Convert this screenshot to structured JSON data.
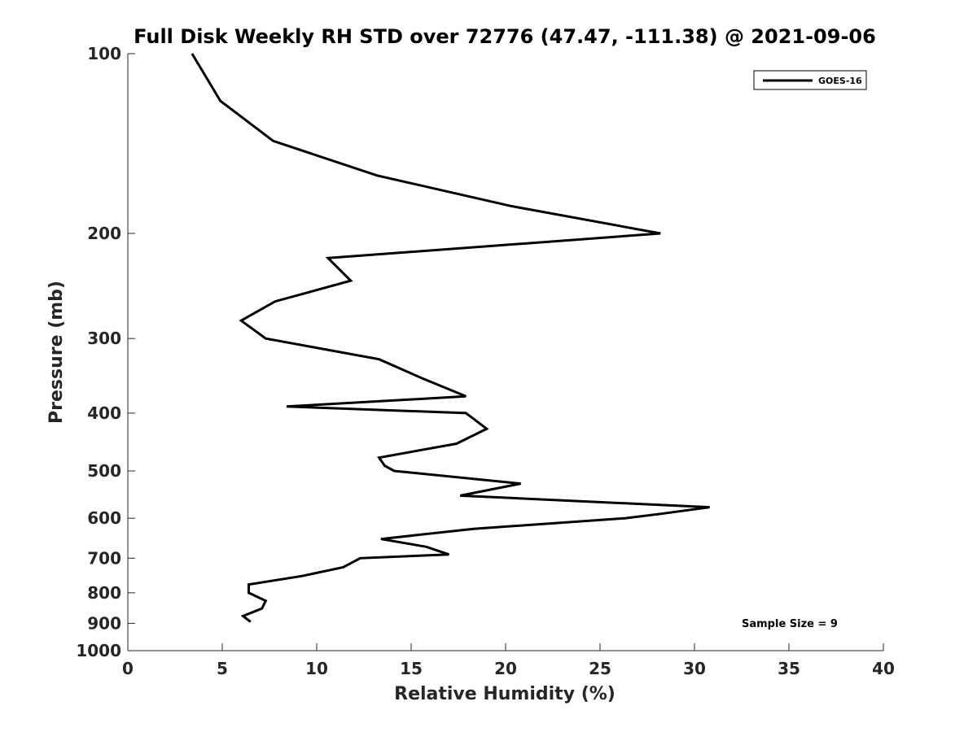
{
  "chart_data": {
    "type": "line",
    "title": "Full Disk Weekly RH STD over 72776 (47.47, -111.38) @ 2021-09-06",
    "xlabel": "Relative Humidity (%)",
    "ylabel": "Pressure (mb)",
    "xlim": [
      0,
      40
    ],
    "ylim": [
      100,
      1000
    ],
    "yscale": "log",
    "y_reversed": true,
    "xticks": [
      0,
      5,
      10,
      15,
      20,
      25,
      30,
      35,
      40
    ],
    "yticks": [
      100,
      200,
      300,
      400,
      500,
      600,
      700,
      800,
      900,
      1000
    ],
    "grid": false,
    "legend_position": "top-right",
    "annotation": "Sample Size = 9",
    "series": [
      {
        "name": "GOES-16",
        "color": "#000000",
        "points": [
          {
            "x": 3.4,
            "p": 100
          },
          {
            "x": 4.9,
            "p": 120
          },
          {
            "x": 7.7,
            "p": 140
          },
          {
            "x": 13.2,
            "p": 160
          },
          {
            "x": 20.3,
            "p": 180
          },
          {
            "x": 28.2,
            "p": 200
          },
          {
            "x": 10.6,
            "p": 220
          },
          {
            "x": 11.8,
            "p": 240
          },
          {
            "x": 7.8,
            "p": 260
          },
          {
            "x": 6.0,
            "p": 280
          },
          {
            "x": 7.3,
            "p": 300
          },
          {
            "x": 13.3,
            "p": 325
          },
          {
            "x": 15.6,
            "p": 350
          },
          {
            "x": 17.9,
            "p": 375
          },
          {
            "x": 8.4,
            "p": 390
          },
          {
            "x": 17.9,
            "p": 400
          },
          {
            "x": 19.0,
            "p": 425
          },
          {
            "x": 17.4,
            "p": 450
          },
          {
            "x": 13.3,
            "p": 475
          },
          {
            "x": 13.6,
            "p": 490
          },
          {
            "x": 14.1,
            "p": 500
          },
          {
            "x": 20.8,
            "p": 525
          },
          {
            "x": 17.6,
            "p": 550
          },
          {
            "x": 30.8,
            "p": 575
          },
          {
            "x": 28.2,
            "p": 590
          },
          {
            "x": 26.3,
            "p": 600
          },
          {
            "x": 18.3,
            "p": 625
          },
          {
            "x": 13.4,
            "p": 650
          },
          {
            "x": 15.8,
            "p": 670
          },
          {
            "x": 17.0,
            "p": 690
          },
          {
            "x": 12.3,
            "p": 700
          },
          {
            "x": 11.4,
            "p": 725
          },
          {
            "x": 9.2,
            "p": 750
          },
          {
            "x": 6.4,
            "p": 775
          },
          {
            "x": 6.4,
            "p": 790
          },
          {
            "x": 6.4,
            "p": 800
          },
          {
            "x": 7.3,
            "p": 825
          },
          {
            "x": 7.1,
            "p": 850
          },
          {
            "x": 6.1,
            "p": 875
          },
          {
            "x": 6.5,
            "p": 895
          }
        ]
      }
    ]
  }
}
